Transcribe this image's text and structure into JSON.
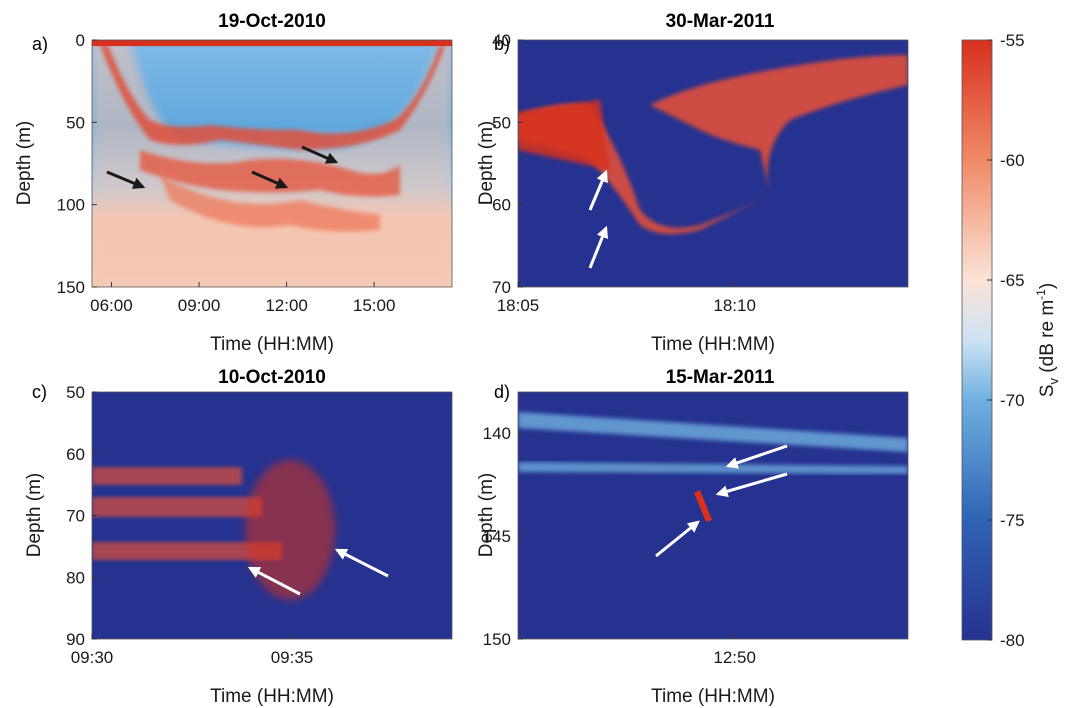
{
  "colors": {
    "high": "#d7301f",
    "mid": "#fbe3d6",
    "mid_low": "#6fb0e0",
    "low": "#26328f",
    "arrow_dark": "#1a1a1a",
    "arrow_light": "#ffffff"
  },
  "chart_data": [
    {
      "type": "heatmap",
      "panel_label": "a)",
      "title": "19-Oct-2010",
      "xlabel": "Time (HH:MM)",
      "ylabel": "Depth (m)",
      "xticks": [
        "06:00",
        "09:00",
        "12:00",
        "15:00"
      ],
      "xlim": [
        "05:20",
        "17:40"
      ],
      "yticks": [
        0,
        50,
        100,
        150
      ],
      "ylim": [
        0,
        150
      ],
      "y_reversed": true,
      "annotations": {
        "arrow_color": "dark",
        "count": 4
      }
    },
    {
      "type": "heatmap",
      "panel_label": "b)",
      "title": "30-Mar-2011",
      "xlabel": "Time (HH:MM)",
      "ylabel": "Depth (m)",
      "xticks": [
        "18:05",
        "18:10"
      ],
      "xlim": [
        "18:05",
        "18:14"
      ],
      "yticks": [
        40,
        50,
        60,
        70
      ],
      "ylim": [
        40,
        70
      ],
      "y_reversed": true,
      "annotations": {
        "arrow_color": "light",
        "count": 2
      }
    },
    {
      "type": "heatmap",
      "panel_label": "c)",
      "title": "10-Oct-2010",
      "xlabel": "Time (HH:MM)",
      "ylabel": "Depth (m)",
      "xticks": [
        "09:30",
        "09:35"
      ],
      "xlim": [
        "09:30",
        "09:39"
      ],
      "yticks": [
        50,
        60,
        70,
        80,
        90
      ],
      "ylim": [
        50,
        90
      ],
      "y_reversed": true,
      "annotations": {
        "arrow_color": "light",
        "count": 2
      }
    },
    {
      "type": "heatmap",
      "panel_label": "d)",
      "title": "15-Mar-2011",
      "xlabel": "Time (HH:MM)",
      "ylabel": "Depth (m)",
      "xticks": [
        "12:50"
      ],
      "xlim": [
        "12:45",
        "12:54"
      ],
      "yticks": [
        140,
        145,
        150
      ],
      "ylim": [
        138,
        150
      ],
      "y_reversed": true,
      "annotations": {
        "arrow_color": "light",
        "count": 3
      }
    }
  ],
  "colorbar": {
    "label_main": "S",
    "label_sub": "v",
    "label_rest": " (dB re m",
    "label_sup": "-1",
    "label_end": ")",
    "ticks": [
      -55,
      -60,
      -65,
      -70,
      -75,
      -80
    ],
    "range": [
      -80,
      -55
    ]
  }
}
